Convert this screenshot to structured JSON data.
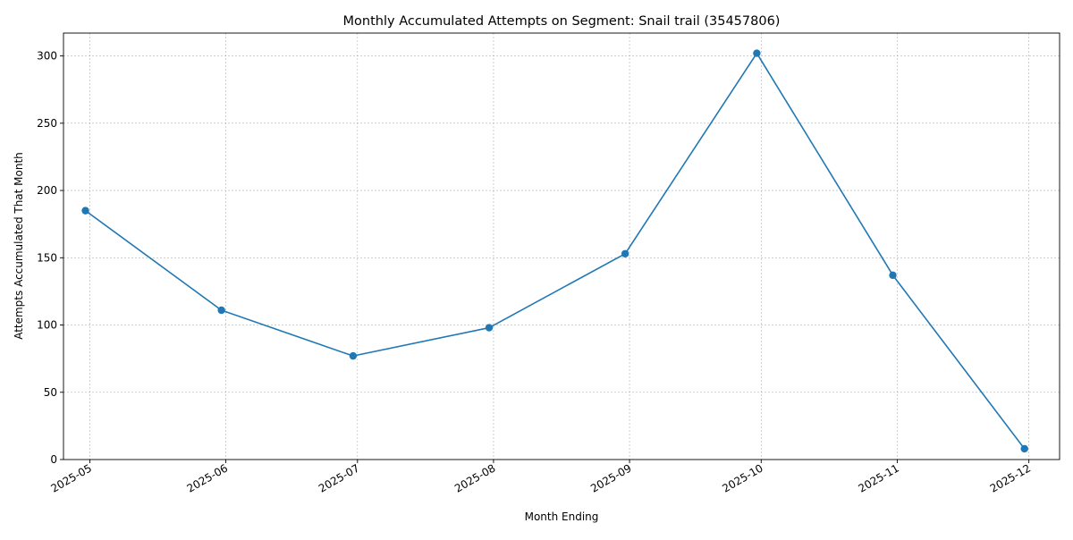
{
  "chart_data": {
    "type": "line",
    "title": "Monthly Accumulated Attempts on Segment: Snail trail (35457806)",
    "xlabel": "Month Ending",
    "ylabel": "Attempts Accumulated That Month",
    "x": [
      "2025-04-30",
      "2025-05-31",
      "2025-06-30",
      "2025-07-31",
      "2025-08-31",
      "2025-09-30",
      "2025-10-31",
      "2025-11-30"
    ],
    "series": [
      {
        "values": [
          185,
          111,
          77,
          98,
          153,
          302,
          137,
          8
        ],
        "color": "#1f77b4",
        "marker": "circle"
      }
    ],
    "xlim": [
      "2025-04-25",
      "2025-12-08"
    ],
    "ylim": [
      0,
      317
    ],
    "x_ticks": [
      {
        "date": "2025-05-01",
        "label": "2025-05"
      },
      {
        "date": "2025-06-01",
        "label": "2025-06"
      },
      {
        "date": "2025-07-01",
        "label": "2025-07"
      },
      {
        "date": "2025-08-01",
        "label": "2025-08"
      },
      {
        "date": "2025-09-01",
        "label": "2025-09"
      },
      {
        "date": "2025-10-01",
        "label": "2025-10"
      },
      {
        "date": "2025-11-01",
        "label": "2025-11"
      },
      {
        "date": "2025-12-01",
        "label": "2025-12"
      }
    ],
    "y_ticks": [
      0,
      50,
      100,
      150,
      200,
      250,
      300
    ],
    "grid": true,
    "grid_style": "dashed",
    "legend": "none"
  }
}
